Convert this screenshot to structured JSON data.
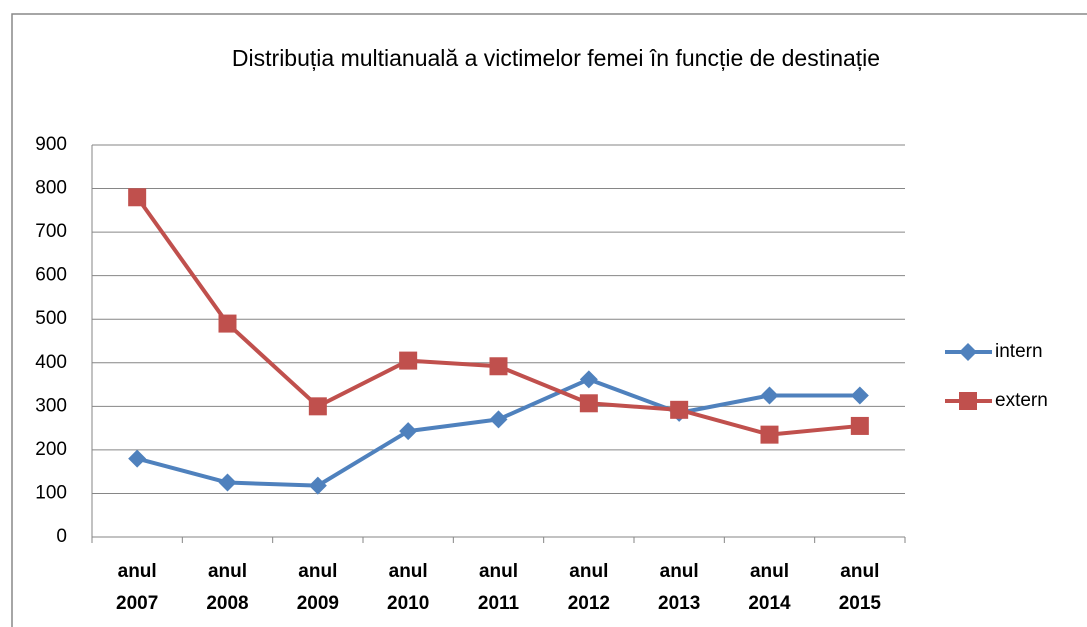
{
  "chart_data": {
    "type": "line",
    "title": "Distribuția multianuală a victimelor femei în funcție de destinație",
    "categories": [
      "anul 2007",
      "anul 2008",
      "anul 2009",
      "anul 2010",
      "anul 2011",
      "anul 2012",
      "anul 2013",
      "anul 2014",
      "anul 2015"
    ],
    "series": [
      {
        "name": "intern",
        "color": "#4f81bd",
        "marker": "diamond",
        "values": [
          180,
          125,
          118,
          243,
          270,
          362,
          285,
          325,
          325
        ]
      },
      {
        "name": "extern",
        "color": "#c0504d",
        "marker": "square",
        "values": [
          780,
          490,
          300,
          405,
          392,
          307,
          292,
          235,
          255
        ]
      }
    ],
    "ylim": [
      0,
      900
    ],
    "yticks": [
      0,
      100,
      200,
      300,
      400,
      500,
      600,
      700,
      800,
      900
    ],
    "grid": true,
    "legend": "right"
  }
}
